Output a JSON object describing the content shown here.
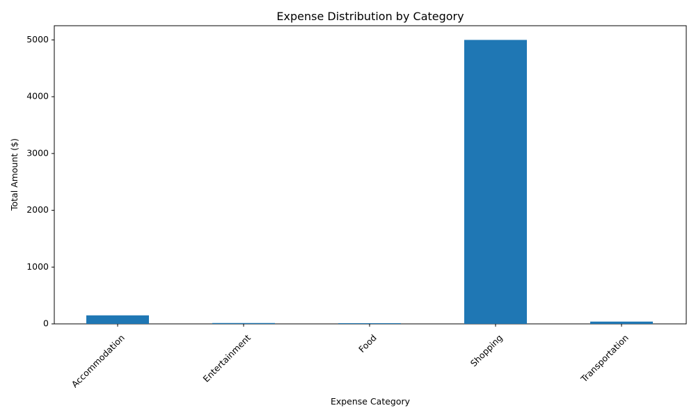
{
  "chart_data": {
    "type": "bar",
    "title": "Expense Distribution by Category",
    "xlabel": "Expense Category",
    "ylabel": "Total Amount ($)",
    "categories": [
      "Accommodation",
      "Entertainment",
      "Food",
      "Shopping",
      "Transportation"
    ],
    "values": [
      150,
      15,
      12,
      5000,
      40
    ],
    "ylim": [
      0,
      5250
    ],
    "yticks": [
      0,
      1000,
      2000,
      3000,
      4000,
      5000
    ],
    "bar_color": "#1f77b4",
    "grid": false,
    "legend": "none"
  }
}
